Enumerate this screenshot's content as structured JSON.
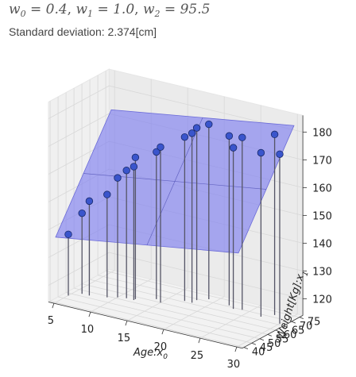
{
  "header": {
    "formula_w0_val": "0.4",
    "formula_w1_val": "1.0",
    "formula_w2_val": "95.5",
    "subtitle": "Standard deviation: 2.374[cm]"
  },
  "colors": {
    "plane": "#7b7bf0",
    "point": "#3a55cc",
    "stem": "#555566",
    "pane": "#eeeeee",
    "grid": "#d8d8d8"
  },
  "chart_data": {
    "type": "scatter",
    "projection": "3d",
    "x_axis": {
      "label": "Age:",
      "label_sub": "0",
      "var": "x",
      "ticks": [
        5,
        10,
        15,
        20,
        25,
        30
      ],
      "range": [
        5,
        30
      ]
    },
    "y_axis": {
      "label": "Weight[Kg]:",
      "label_sub": "1",
      "var": "x",
      "ticks": [
        40,
        45,
        50,
        55,
        60,
        65,
        70,
        75
      ],
      "range": [
        40,
        75
      ]
    },
    "z_axis": {
      "label": "",
      "ticks": [
        120,
        130,
        140,
        150,
        160,
        170,
        180
      ],
      "range": [
        120,
        180
      ]
    },
    "plane": {
      "w0": 0.4,
      "w1": 1.0,
      "w2": 95.5
    },
    "points": [
      {
        "age": 5,
        "weight": 48,
        "height": 136
      },
      {
        "age": 6,
        "weight": 52,
        "height": 143
      },
      {
        "age": 7,
        "weight": 52,
        "height": 148
      },
      {
        "age": 9,
        "weight": 54,
        "height": 151
      },
      {
        "age": 10,
        "weight": 56,
        "height": 157
      },
      {
        "age": 11,
        "weight": 57,
        "height": 160
      },
      {
        "age": 12,
        "weight": 57,
        "height": 162
      },
      {
        "age": 12,
        "weight": 58,
        "height": 165
      },
      {
        "age": 14,
        "weight": 62,
        "height": 167
      },
      {
        "age": 15,
        "weight": 60,
        "height": 170
      },
      {
        "age": 17,
        "weight": 66,
        "height": 173
      },
      {
        "age": 18,
        "weight": 66,
        "height": 175
      },
      {
        "age": 18,
        "weight": 69,
        "height": 176
      },
      {
        "age": 19,
        "weight": 72,
        "height": 177
      },
      {
        "age": 22,
        "weight": 71,
        "height": 175
      },
      {
        "age": 23,
        "weight": 69,
        "height": 172
      },
      {
        "age": 24,
        "weight": 70,
        "height": 176
      },
      {
        "age": 27,
        "weight": 68,
        "height": 173
      },
      {
        "age": 28,
        "weight": 72,
        "height": 179
      },
      {
        "age": 30,
        "weight": 66,
        "height": 175
      }
    ]
  }
}
